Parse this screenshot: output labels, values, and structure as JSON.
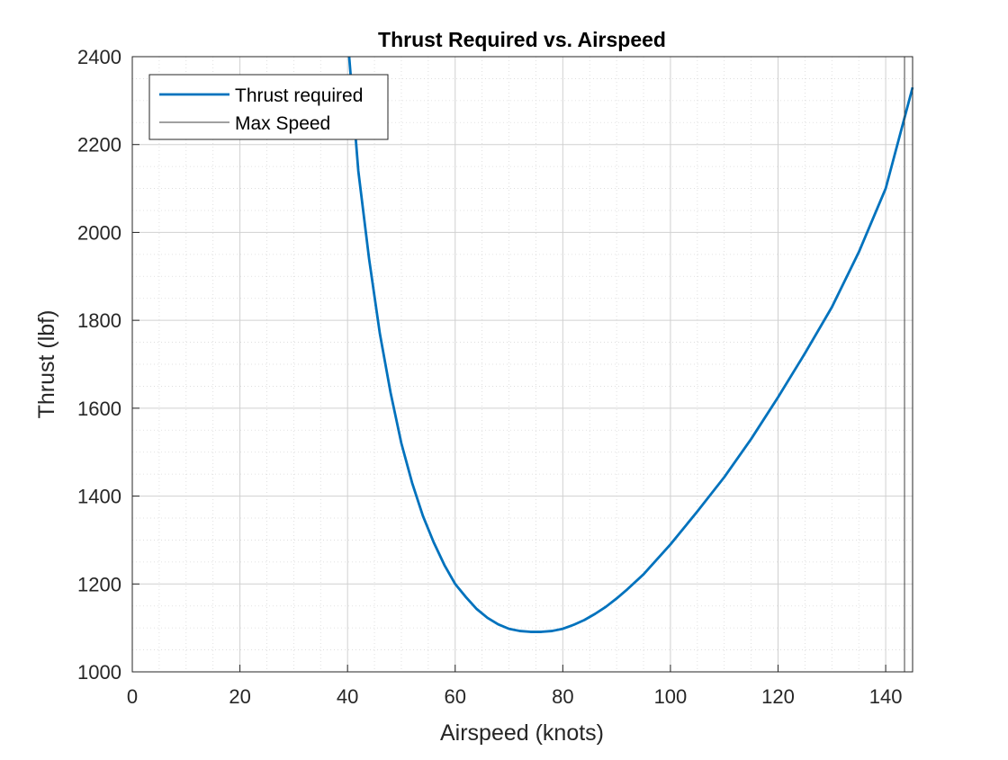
{
  "chart_data": {
    "type": "line",
    "title": "Thrust Required vs. Airspeed",
    "xlabel": "Airspeed (knots)",
    "ylabel": "Thrust (lbf)",
    "xlim": [
      0,
      145
    ],
    "ylim": [
      1000,
      2400
    ],
    "xticks": [
      0,
      20,
      40,
      60,
      80,
      100,
      120,
      140
    ],
    "yticks": [
      1000,
      1200,
      1400,
      1600,
      1800,
      2000,
      2200,
      2400
    ],
    "xtick_labels": [
      "0",
      "20",
      "40",
      "60",
      "80",
      "100",
      "120",
      "140"
    ],
    "ytick_labels": [
      "1000",
      "1200",
      "1400",
      "1600",
      "1800",
      "2000",
      "2200",
      "2400"
    ],
    "grid": true,
    "minor_grid": true,
    "legend_position": "top-left",
    "series": [
      {
        "name": "Thrust required",
        "color": "#0072BD",
        "x": [
          40.3,
          42,
          44,
          46,
          48,
          50,
          52,
          54,
          56,
          58,
          60,
          62,
          64,
          66,
          68,
          70,
          72,
          74,
          76,
          78,
          80,
          82,
          84,
          86,
          88,
          90,
          92,
          95,
          100,
          105,
          110,
          115,
          120,
          125,
          130,
          135,
          140,
          145
        ],
        "y": [
          2400,
          2140,
          1940,
          1770,
          1635,
          1520,
          1430,
          1355,
          1295,
          1243,
          1200,
          1170,
          1143,
          1123,
          1108,
          1098,
          1093,
          1091,
          1091,
          1093,
          1098,
          1107,
          1118,
          1132,
          1148,
          1167,
          1188,
          1222,
          1290,
          1365,
          1443,
          1530,
          1625,
          1725,
          1830,
          1955,
          2100,
          2330
        ]
      },
      {
        "name": "Max Speed",
        "color": "#404040",
        "x": [
          143.5,
          143.5
        ],
        "y": [
          1000,
          2400
        ]
      }
    ]
  }
}
